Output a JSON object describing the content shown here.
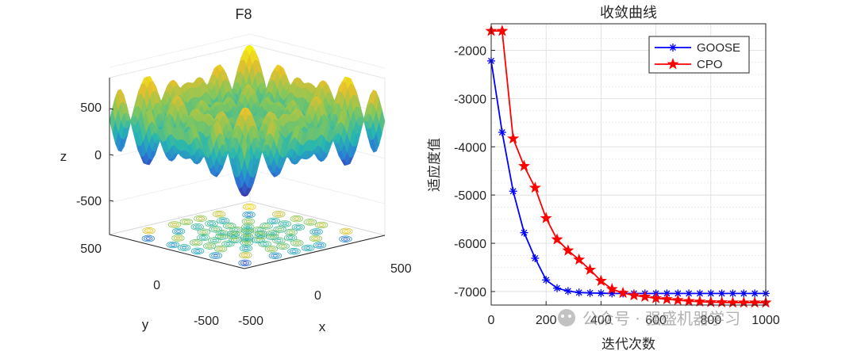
{
  "chart_data": [
    {
      "type": "surface3d",
      "title": "F8",
      "xlabel": "x",
      "ylabel": "y",
      "zlabel": "z",
      "xlim": [
        -500,
        500
      ],
      "ylim": [
        -500,
        500
      ],
      "zlim": [
        -838,
        838
      ],
      "x_ticks": [
        "-500",
        "0",
        "500"
      ],
      "y_ticks": [
        "-500",
        "0",
        "500"
      ],
      "z_ticks": [
        "500",
        "0",
        "-500"
      ],
      "function": "z = x*sin(sqrt(|x|)) + y*sin(sqrt(|y|))",
      "colormap": [
        "#3e26a8",
        "#2a7dd6",
        "#27b7b0",
        "#85c75a",
        "#e5c02c",
        "#f9fb0e"
      ],
      "contour_on_floor": true
    },
    {
      "type": "line",
      "title": "收敛曲线",
      "xlabel": "迭代次数",
      "ylabel": "适应度值",
      "xlim": [
        0,
        1000
      ],
      "ylim": [
        -7280,
        -1450
      ],
      "x_ticks": [
        "0",
        "200",
        "400",
        "600",
        "800",
        "1000"
      ],
      "y_ticks": [
        "-2000",
        "-3000",
        "-4000",
        "-5000",
        "-6000",
        "-7000"
      ],
      "grid": true,
      "legend_position": "top-right",
      "x": [
        0,
        40,
        80,
        120,
        160,
        200,
        240,
        280,
        320,
        360,
        400,
        440,
        480,
        520,
        560,
        600,
        640,
        680,
        720,
        760,
        800,
        840,
        880,
        920,
        960,
        1000
      ],
      "series": [
        {
          "name": "GOOSE",
          "color": "#0000ff",
          "marker": "asterisk",
          "values": [
            -2220,
            -3700,
            -4920,
            -5780,
            -6310,
            -6760,
            -6930,
            -6990,
            -7020,
            -7030,
            -7035,
            -7040,
            -7040,
            -7040,
            -7040,
            -7040,
            -7040,
            -7040,
            -7040,
            -7040,
            -7040,
            -7040,
            -7040,
            -7040,
            -7040,
            -7040
          ]
        },
        {
          "name": "CPO",
          "color": "#ff0000",
          "marker": "pentagram",
          "values": [
            -1600,
            -1600,
            -3830,
            -4400,
            -4850,
            -5480,
            -5920,
            -6150,
            -6340,
            -6550,
            -6780,
            -6950,
            -7030,
            -7080,
            -7110,
            -7140,
            -7160,
            -7180,
            -7200,
            -7210,
            -7220,
            -7225,
            -7230,
            -7230,
            -7230,
            -7230
          ]
        }
      ]
    }
  ],
  "watermark": {
    "text": "公众号 · 强盛机器学习"
  }
}
